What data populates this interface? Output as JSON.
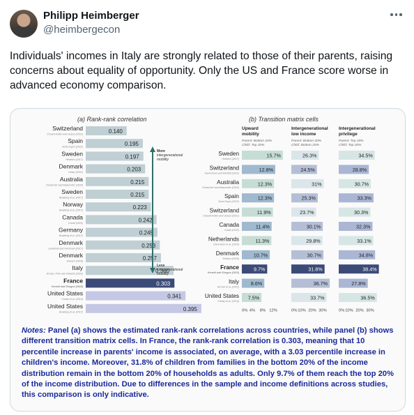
{
  "tweet": {
    "author_name": "Philipp Heimberger",
    "author_handle": "@heimbergecon",
    "text": "Individuals' incomes in Italy are strongly related to those of their parents, raising concerns about equality of opportunity. Only the US and France score worse in advanced economy comparison."
  },
  "icons": {
    "avatar": "avatar-photo",
    "more": "more-horizontal-icon"
  },
  "colors": {
    "bar": "#bfcfd4",
    "france_bar": "#3c4a78",
    "us_bar": "#c4c8e4",
    "accent": "#1a2a9a",
    "arrow": "#2f6f6a"
  },
  "chart_data": [
    {
      "type": "bar",
      "title": "(a) Rank-rank correlation",
      "categories": [
        "Switzerland",
        "Spain",
        "Sweden",
        "Denmark",
        "Australia",
        "Sweden",
        "Norway",
        "Canada",
        "Germany",
        "Denmark",
        "Denmark",
        "Italy",
        "France",
        "United States",
        "United States"
      ],
      "sources": [
        "Chuard-Keller and Grassi (2021)",
        "Soria Espín (2022)",
        "Heidrich (2017)",
        "Helsø (2021)",
        "Deutscher and Mazumder (2020)",
        "Bratberg et al. (2017)",
        "Bratberg et al. (2017)",
        "Corak (2020)",
        "Bratberg et al. (2017)",
        "Landersø and Heckman (2017)",
        "Eriksen (2018)",
        "Acciari, Polo and Violante (2022)",
        "Kenedi and Sirugue (2023)",
        "Chetty et al. (2014)",
        "Bratberg et al. (2017)"
      ],
      "values": [
        0.14,
        0.195,
        0.197,
        0.203,
        0.215,
        0.215,
        0.223,
        0.242,
        0.245,
        0.253,
        0.257,
        0.3,
        0.303,
        0.341,
        0.395
      ],
      "value_labels": [
        "0.140",
        "0.195",
        "0.197",
        "0.203",
        "0.215",
        "0.215",
        "0.223",
        "0.242",
        "0.245",
        "0.253",
        "0.257",
        "0.300",
        "0.303",
        "0.341",
        "0.395"
      ],
      "highlight": "France",
      "arrow_top_label": "More intergenerational mobility",
      "arrow_bottom_label": "Less intergenerational mobility"
    },
    {
      "type": "bar",
      "title": "(b) Transition matrix cells",
      "columns": [
        {
          "name": "Upward mobility",
          "sub": "Parent: Bottom 20% Child: Top 20%",
          "axis_ticks": [
            "0%",
            "4%",
            "8%",
            "12%"
          ],
          "max": 16
        },
        {
          "name": "Intergenerational low income",
          "sub": "Parent: Bottom 20% Child: Bottom 20%",
          "axis_ticks": [
            "0%",
            "10%",
            "20%",
            "30%"
          ],
          "max": 40
        },
        {
          "name": "Intergenerational privilege",
          "sub": "Parent: Top 20% Child: Top 20%",
          "axis_ticks": [
            "0%",
            "10%",
            "20%",
            "30%"
          ],
          "max": 40
        }
      ],
      "rows": [
        {
          "country": "Sweden",
          "source": "Heidrich (2017)",
          "values": [
            15.7,
            26.3,
            34.5
          ],
          "labels": [
            "15.7%",
            "26.3%",
            "34.5%"
          ]
        },
        {
          "country": "Switzerland",
          "source": "Kazemiseh and Morfeld (2021)",
          "values": [
            12.8,
            24.5,
            28.8
          ],
          "labels": [
            "12.8%",
            "24.5%",
            "28.8%"
          ]
        },
        {
          "country": "Australia",
          "source": "Deutscher and Mazumder (2020)",
          "values": [
            12.3,
            31,
            30.7
          ],
          "labels": [
            "12.3%",
            "31%",
            "30.7%"
          ]
        },
        {
          "country": "Spain",
          "source": "Soria Espín (2022)",
          "values": [
            12.3,
            25.3,
            33.3
          ],
          "labels": [
            "12.3%",
            "25.3%",
            "33.3%"
          ]
        },
        {
          "country": "Switzerland",
          "source": "Chuard-Keller and Grassi (2021)",
          "values": [
            11.9,
            23.7,
            30.3
          ],
          "labels": [
            "11.9%",
            "23.7%",
            "30.3%"
          ]
        },
        {
          "country": "Canada",
          "source": "Corak (2020)",
          "values": [
            11.4,
            30.1,
            32.3
          ],
          "labels": [
            "11.4%",
            "30.1%",
            "32.3%"
          ]
        },
        {
          "country": "Netherlands",
          "source": "Clemcheel et al. (2020)",
          "values": [
            11.3,
            29.8,
            33.1
          ],
          "labels": [
            "11.3%",
            "29.8%",
            "33.1%"
          ]
        },
        {
          "country": "Denmark",
          "source": "Eriksen (2018)",
          "values": [
            10.7,
            30.7,
            34.8
          ],
          "labels": [
            "10.7%",
            "30.7%",
            "34.8%"
          ]
        },
        {
          "country": "France",
          "source": "Kenedi and Sirugue (2023)",
          "values": [
            9.7,
            31.8,
            38.4
          ],
          "labels": [
            "9.7%",
            "31.8%",
            "38.4%"
          ]
        },
        {
          "country": "Italy",
          "source": "Acciari et al. (2022)",
          "values": [
            8.6,
            36.7,
            27.8
          ],
          "labels": [
            "8.6%",
            "36.7%",
            "27.8%"
          ]
        },
        {
          "country": "United States",
          "source": "Chetty et al. (2014)",
          "values": [
            7.5,
            33.7,
            36.5
          ],
          "labels": [
            "7.5%",
            "33.7%",
            "36.5%"
          ]
        }
      ]
    }
  ],
  "notes": {
    "label": "Notes:",
    "text": " Panel (a) shows the estimated rank-rank correlations across countries, while panel (b) shows different transition matrix cells. In France, the rank-rank correlation is 0.303, meaning that 10 percentile increase in parents' income is associated, on average, with a 3.03 percentile increase in children's income. Moreover, 31.8% of children from families in the bottom 20% of the income distribution remain in the bottom 20% of households as adults. Only 9.7% of them reach the top 20% of the income distribution. Due to differences in the sample and income definitions across studies, this comparison is only indicative."
  }
}
